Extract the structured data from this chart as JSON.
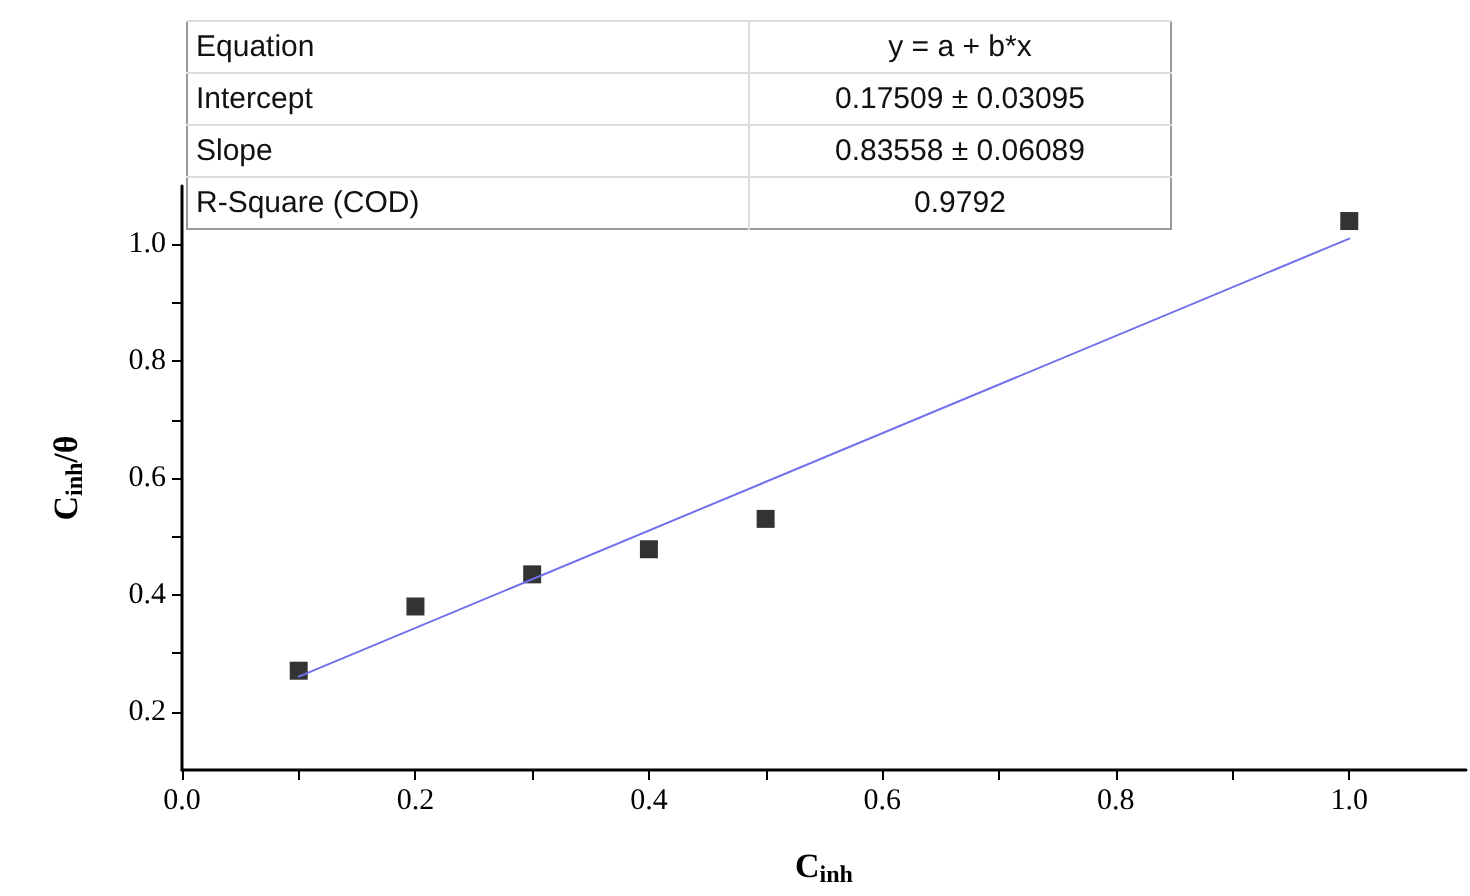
{
  "chart_data": {
    "type": "scatter",
    "xlabel": "C$_{inh}$",
    "ylabel": "C$_{inh}$/θ",
    "x": [
      0.1,
      0.2,
      0.3,
      0.4,
      0.5,
      1.0
    ],
    "series": [
      {
        "color": "#000000",
        "marker": "square",
        "values": [
          0.27,
          0.38,
          0.435,
          0.478,
          0.53,
          1.04
        ]
      },
      {
        "type": "line",
        "color": "#7070ee",
        "marker": "none",
        "line_style": "solid",
        "x": [
          0.1,
          1.0
        ],
        "values": [
          0.26,
          1.01
        ]
      }
    ],
    "xlim": [
      0,
      1.1
    ],
    "ylim": [
      0.1,
      1.1
    ],
    "xticks": [
      {
        "value": 0,
        "label": "0.0"
      },
      {
        "value": 0.1,
        "label": null
      },
      0.2,
      {
        "value": 0.3,
        "label": null
      },
      0.4,
      {
        "value": 0.5,
        "label": null
      },
      0.6,
      {
        "value": 0.7,
        "label": null
      },
      0.8,
      {
        "value": 0.9,
        "label": null
      },
      {
        "value": 1,
        "label": "1.0"
      }
    ],
    "yticks": [
      0.2,
      {
        "value": 0.3,
        "label": null
      },
      0.4,
      {
        "value": 0.5,
        "label": null
      },
      0.6,
      {
        "value": 0.7,
        "label": null
      },
      0.8,
      {
        "value": 0.9,
        "label": null
      },
      {
        "value": 1,
        "label": "1.0"
      }
    ],
    "grid": false,
    "annotations": [
      "Equation",
      "y = a + b*x",
      "Intercept",
      "0.17509 ± 0.03095",
      "Slope",
      "0.83558 ± 0.06089",
      "R-Square (COD)",
      "0.9792"
    ]
  }
}
